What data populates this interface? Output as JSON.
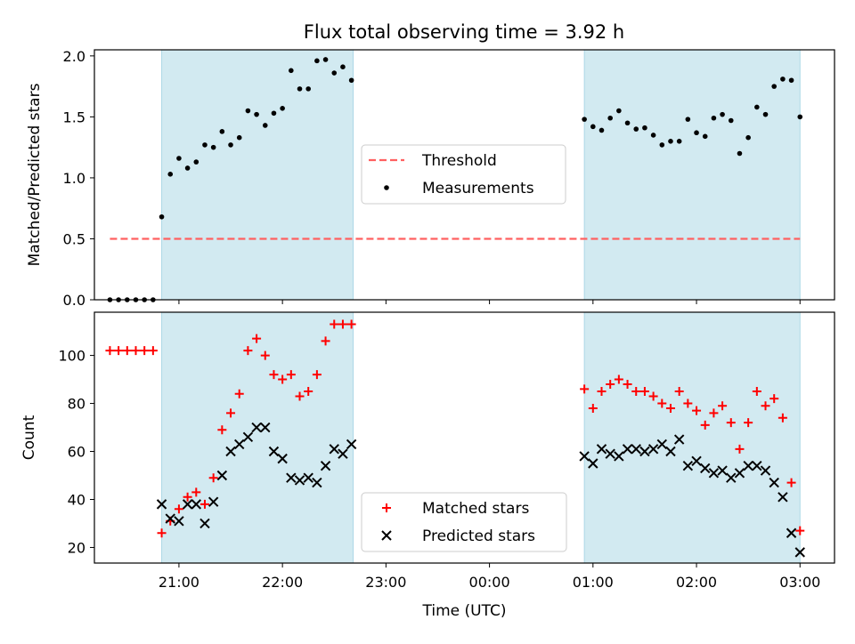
{
  "title": "Flux total observing time = 3.92 h",
  "colors": {
    "shade": "#add8e6",
    "threshold": "#ff6060",
    "matched": "#ff0000",
    "predicted": "#000000",
    "measurement": "#000000"
  },
  "chart_data": [
    {
      "type": "scatter",
      "ylabel": "Matched/Predicted stars",
      "xlim": [
        "20:11",
        "03:20"
      ],
      "ylim": [
        0,
        2.05
      ],
      "yticks": [
        "0.0",
        "0.5",
        "1.0",
        "1.5",
        "2.0"
      ],
      "shaded_regions": [
        [
          "20:50",
          "22:41"
        ],
        [
          "00:55",
          "03:00"
        ]
      ],
      "legend": {
        "placement": "center-right",
        "entries": [
          "Threshold",
          "Measurements"
        ]
      },
      "threshold": {
        "name": "Threshold",
        "value": 0.5,
        "x_range": [
          "20:20",
          "03:00"
        ]
      },
      "series": [
        {
          "name": "Measurements",
          "x": [
            "20:20",
            "20:25",
            "20:30",
            "20:35",
            "20:40",
            "20:45",
            "20:50",
            "20:55",
            "21:00",
            "21:05",
            "21:10",
            "21:15",
            "21:20",
            "21:25",
            "21:30",
            "21:35",
            "21:40",
            "21:45",
            "21:50",
            "21:55",
            "22:00",
            "22:05",
            "22:10",
            "22:15",
            "22:20",
            "22:25",
            "22:30",
            "22:35",
            "22:40",
            "00:55",
            "01:00",
            "01:05",
            "01:10",
            "01:15",
            "01:20",
            "01:25",
            "01:30",
            "01:35",
            "01:40",
            "01:45",
            "01:50",
            "01:55",
            "02:00",
            "02:05",
            "02:10",
            "02:15",
            "02:20",
            "02:25",
            "02:30",
            "02:35",
            "02:40",
            "02:45",
            "02:50",
            "02:55",
            "03:00"
          ],
          "y": [
            0,
            0,
            0,
            0,
            0,
            0,
            0.68,
            1.03,
            1.16,
            1.08,
            1.13,
            1.27,
            1.25,
            1.38,
            1.27,
            1.33,
            1.55,
            1.52,
            1.43,
            1.53,
            1.57,
            1.88,
            1.73,
            1.73,
            1.96,
            1.97,
            1.86,
            1.91,
            1.8,
            1.48,
            1.42,
            1.39,
            1.49,
            1.55,
            1.45,
            1.4,
            1.41,
            1.35,
            1.27,
            1.3,
            1.3,
            1.48,
            1.37,
            1.34,
            1.49,
            1.52,
            1.47,
            1.2,
            1.33,
            1.58,
            1.52,
            1.75,
            1.81,
            1.8,
            1.5
          ]
        }
      ]
    },
    {
      "type": "scatter",
      "xlabel": "Time (UTC)",
      "ylabel": "Count",
      "xlim": [
        "20:11",
        "03:20"
      ],
      "ylim": [
        13.5,
        118
      ],
      "yticks": [
        "20",
        "40",
        "60",
        "80",
        "100"
      ],
      "xticks": [
        "21:00",
        "22:00",
        "23:00",
        "00:00",
        "01:00",
        "02:00",
        "03:00"
      ],
      "shaded_regions": [
        [
          "20:50",
          "22:41"
        ],
        [
          "00:55",
          "03:00"
        ]
      ],
      "legend": {
        "placement": "lower-center",
        "entries": [
          "Matched stars",
          "Predicted stars"
        ]
      },
      "series": [
        {
          "name": "Matched stars",
          "x": [
            "20:20",
            "20:25",
            "20:30",
            "20:35",
            "20:40",
            "20:45",
            "20:50",
            "20:55",
            "21:00",
            "21:05",
            "21:10",
            "21:15",
            "21:20",
            "21:25",
            "21:30",
            "21:35",
            "21:40",
            "21:45",
            "21:50",
            "21:55",
            "22:00",
            "22:05",
            "22:10",
            "22:15",
            "22:20",
            "22:25",
            "22:30",
            "22:35",
            "22:40",
            "00:55",
            "01:00",
            "01:05",
            "01:10",
            "01:15",
            "01:20",
            "01:25",
            "01:30",
            "01:35",
            "01:40",
            "01:45",
            "01:50",
            "01:55",
            "02:00",
            "02:05",
            "02:10",
            "02:15",
            "02:20",
            "02:25",
            "02:30",
            "02:35",
            "02:40",
            "02:45",
            "02:50",
            "02:55",
            "03:00"
          ],
          "y": [
            102,
            102,
            102,
            102,
            102,
            102,
            26,
            31,
            36,
            41,
            43,
            38,
            49,
            69,
            76,
            84,
            102,
            107,
            100,
            92,
            90,
            92,
            83,
            85,
            92,
            106,
            113,
            113,
            113,
            86,
            78,
            85,
            88,
            90,
            88,
            85,
            85,
            83,
            80,
            78,
            85,
            80,
            77,
            71,
            76,
            79,
            72,
            61,
            72,
            85,
            79,
            82,
            74,
            47,
            27
          ]
        },
        {
          "name": "Predicted stars",
          "x": [
            "20:50",
            "20:55",
            "21:00",
            "21:05",
            "21:10",
            "21:15",
            "21:20",
            "21:25",
            "21:30",
            "21:35",
            "21:40",
            "21:45",
            "21:50",
            "21:55",
            "22:00",
            "22:05",
            "22:10",
            "22:15",
            "22:20",
            "22:25",
            "22:30",
            "22:35",
            "22:40",
            "00:55",
            "01:00",
            "01:05",
            "01:10",
            "01:15",
            "01:20",
            "01:25",
            "01:30",
            "01:35",
            "01:40",
            "01:45",
            "01:50",
            "01:55",
            "02:00",
            "02:05",
            "02:10",
            "02:15",
            "02:20",
            "02:25",
            "02:30",
            "02:35",
            "02:40",
            "02:45",
            "02:50",
            "02:55",
            "03:00"
          ],
          "y": [
            38,
            32,
            31,
            38,
            38,
            30,
            39,
            50,
            60,
            63,
            66,
            70,
            70,
            60,
            57,
            49,
            48,
            49,
            47,
            54,
            61,
            59,
            63,
            58,
            55,
            61,
            59,
            58,
            61,
            61,
            60,
            61,
            63,
            60,
            65,
            54,
            56,
            53,
            51,
            52,
            49,
            51,
            54,
            54,
            52,
            47,
            41,
            26,
            18
          ]
        }
      ]
    }
  ]
}
